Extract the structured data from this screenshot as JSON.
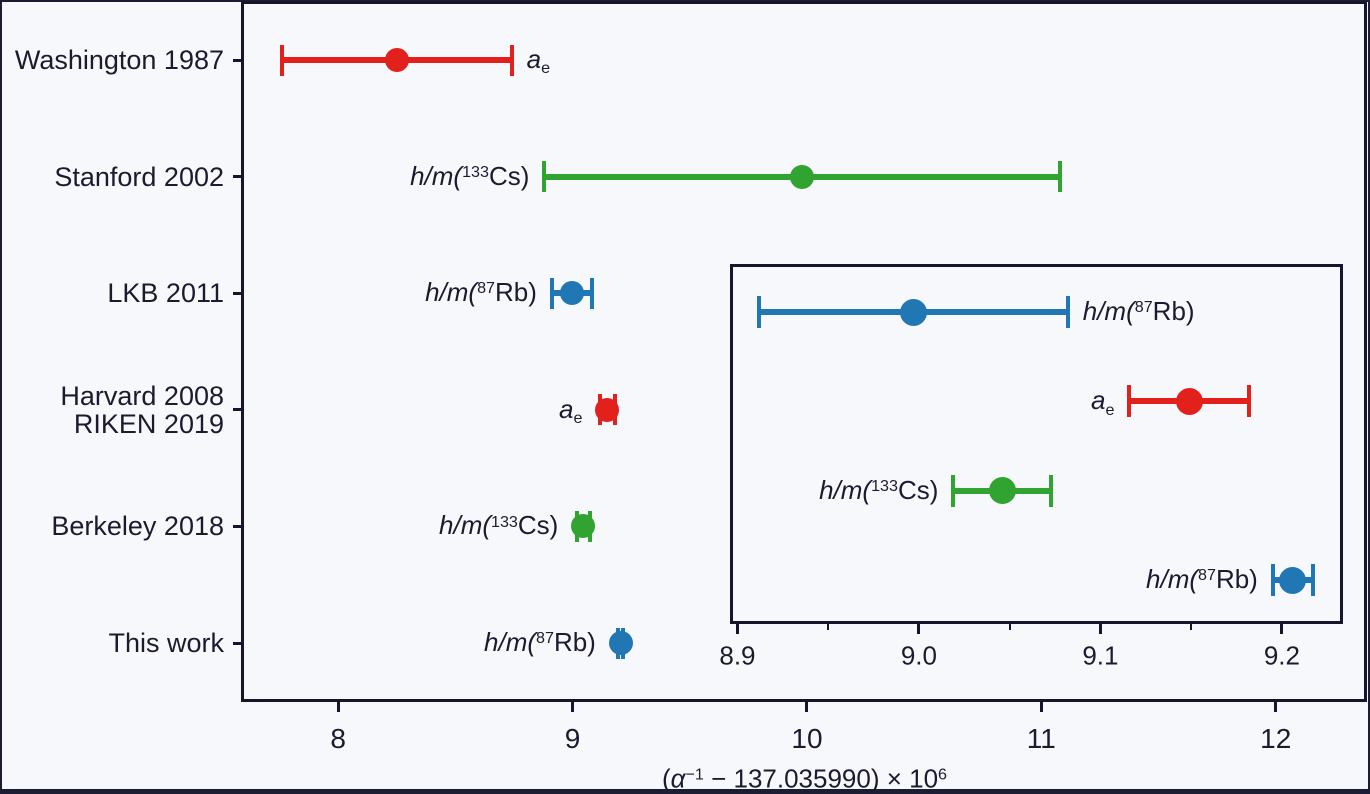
{
  "figure": {
    "background": "#f7f8fb",
    "frame_color": "#15152d",
    "text_color": "#1b1b30"
  },
  "chart_data": {
    "type": "scatter",
    "title": "",
    "xlabel_parts": [
      {
        "t": "(",
        "s": "n"
      },
      {
        "t": "α",
        "s": "i"
      },
      {
        "t": "−1",
        "s": "sup"
      },
      {
        "t": " − 137.035990) × 10",
        "s": "n"
      },
      {
        "t": "6",
        "s": "sup"
      }
    ],
    "colors": {
      "red": "#e3211c",
      "green": "#31a330",
      "blue": "#2177b4"
    },
    "grid": false,
    "main": {
      "xlim": [
        7.594,
        12.385
      ],
      "xticks": [
        {
          "v": 8,
          "label": "8"
        },
        {
          "v": 9,
          "label": "9"
        },
        {
          "v": 10,
          "label": "10"
        },
        {
          "v": 11,
          "label": "11"
        },
        {
          "v": 12,
          "label": "12"
        }
      ],
      "rows": [
        {
          "label_lines": [
            "Washington 1987"
          ],
          "method_parts": [
            {
              "t": "a",
              "s": "i"
            },
            {
              "t": "e",
              "s": "sub"
            }
          ],
          "value": 8.25,
          "err": 0.49,
          "color": "red",
          "label_side": "right"
        },
        {
          "label_lines": [
            "Stanford 2002"
          ],
          "method_parts": [
            {
              "t": "h/m(",
              "s": "i"
            },
            {
              "t": "133",
              "s": "sup"
            },
            {
              "t": "Cs)",
              "s": "n"
            }
          ],
          "value": 9.98,
          "err": 1.1,
          "color": "green",
          "label_side": "left"
        },
        {
          "label_lines": [
            "LKB 2011"
          ],
          "method_parts": [
            {
              "t": "h/m(",
              "s": "i"
            },
            {
              "t": "87",
              "s": "sup"
            },
            {
              "t": "Rb)",
              "s": "n"
            }
          ],
          "value": 8.997,
          "err": 0.085,
          "color": "blue",
          "label_side": "left"
        },
        {
          "label_lines": [
            "Harvard 2008",
            "RIKEN 2019"
          ],
          "method_parts": [
            {
              "t": "a",
              "s": "i"
            },
            {
              "t": "e",
              "s": "sub"
            }
          ],
          "value": 9.149,
          "err": 0.033,
          "color": "red",
          "label_side": "left"
        },
        {
          "label_lines": [
            "Berkeley 2018"
          ],
          "method_parts": [
            {
              "t": "h/m(",
              "s": "i"
            },
            {
              "t": "133",
              "s": "sup"
            },
            {
              "t": "Cs)",
              "s": "n"
            }
          ],
          "value": 9.046,
          "err": 0.027,
          "color": "green",
          "label_side": "left"
        },
        {
          "label_lines": [
            "This work"
          ],
          "method_parts": [
            {
              "t": "h/m(",
              "s": "i"
            },
            {
              "t": "87",
              "s": "sup"
            },
            {
              "t": "Rb)",
              "s": "n"
            }
          ],
          "value": 9.206,
          "err": 0.011,
          "color": "blue",
          "label_side": "left"
        }
      ]
    },
    "inset": {
      "xlim": [
        8.897,
        9.232
      ],
      "xticks": [
        {
          "v": 8.9,
          "label": "8.9"
        },
        {
          "v": 9.0,
          "label": "9.0"
        },
        {
          "v": 9.1,
          "label": "9.1"
        },
        {
          "v": 9.2,
          "label": "9.2"
        }
      ],
      "minor_xticks": [
        8.95,
        9.05,
        9.15
      ],
      "rows": [
        {
          "method_parts": [
            {
              "t": "h/m(",
              "s": "i"
            },
            {
              "t": "87",
              "s": "sup"
            },
            {
              "t": "Rb)",
              "s": "n"
            }
          ],
          "value": 8.997,
          "err": 0.085,
          "color": "blue",
          "label_side": "right"
        },
        {
          "method_parts": [
            {
              "t": "a",
              "s": "i"
            },
            {
              "t": "e",
              "s": "sub"
            }
          ],
          "value": 9.149,
          "err": 0.033,
          "color": "red",
          "label_side": "left"
        },
        {
          "method_parts": [
            {
              "t": "h/m(",
              "s": "i"
            },
            {
              "t": "133",
              "s": "sup"
            },
            {
              "t": "Cs)",
              "s": "n"
            }
          ],
          "value": 9.046,
          "err": 0.027,
          "color": "green",
          "label_side": "left"
        },
        {
          "method_parts": [
            {
              "t": "h/m(",
              "s": "i"
            },
            {
              "t": "87",
              "s": "sup"
            },
            {
              "t": "Rb)",
              "s": "n"
            }
          ],
          "value": 9.206,
          "err": 0.011,
          "color": "blue",
          "label_side": "left"
        }
      ]
    }
  }
}
